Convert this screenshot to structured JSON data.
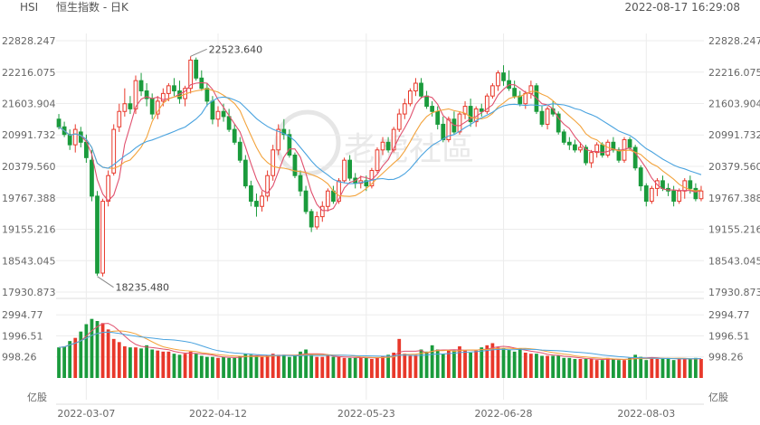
{
  "header": {
    "symbol": "HSI",
    "title": "恒生指数 - 日K",
    "timestamp": "2022-08-17 16:29:08"
  },
  "watermark": "老虎社區",
  "colors": {
    "up": "#e8382a",
    "down": "#1a9b3c",
    "ma5": "#e0506e",
    "ma10": "#f3a33c",
    "ma20": "#4aa3df",
    "grid": "#ececec",
    "axis_text": "#666666"
  },
  "chart_data": [
    {
      "type": "candlestick",
      "title": "恒生指数 - 日K",
      "ylim": [
        17930.873,
        22828.247
      ],
      "y_ticks": [
        "22828.247",
        "22216.075",
        "21603.904",
        "20991.732",
        "20379.560",
        "19767.388",
        "19155.216",
        "18543.045",
        "17930.873"
      ],
      "x_ticks": [
        {
          "index": 5,
          "label": "2022-03-07"
        },
        {
          "index": 29,
          "label": "2022-04-12"
        },
        {
          "index": 56,
          "label": "2022-05-23"
        },
        {
          "index": 81,
          "label": "2022-06-28"
        },
        {
          "index": 107,
          "label": "2022-08-03"
        }
      ],
      "annotations": [
        {
          "label": "22523.640",
          "index": 24,
          "value": 22523.64
        },
        {
          "label": "18235.480",
          "index": 7,
          "value": 18235.48
        }
      ],
      "num_bars": 118,
      "ohlc": [
        [
          21300,
          21400,
          21100,
          21150
        ],
        [
          21150,
          21250,
          20950,
          21000
        ],
        [
          21000,
          21100,
          20700,
          20800
        ],
        [
          20800,
          21200,
          20650,
          21100
        ],
        [
          21050,
          21150,
          20750,
          20850
        ],
        [
          20850,
          21000,
          20450,
          20550
        ],
        [
          20500,
          20700,
          19700,
          19800
        ],
        [
          19800,
          19900,
          18250,
          18300
        ],
        [
          18300,
          19750,
          18235,
          19700
        ],
        [
          19700,
          20300,
          19600,
          20200
        ],
        [
          20250,
          21200,
          20200,
          21100
        ],
        [
          21150,
          21600,
          21050,
          21450
        ],
        [
          21450,
          21900,
          21350,
          21600
        ],
        [
          21600,
          21750,
          21400,
          21500
        ],
        [
          21500,
          22150,
          21400,
          22050
        ],
        [
          22050,
          22200,
          21750,
          21850
        ],
        [
          21850,
          22000,
          21550,
          21700
        ],
        [
          21700,
          21800,
          21300,
          21400
        ],
        [
          21400,
          21750,
          21300,
          21650
        ],
        [
          21650,
          21900,
          21550,
          21800
        ],
        [
          21800,
          22000,
          21650,
          21950
        ],
        [
          21950,
          22100,
          21750,
          21850
        ],
        [
          21850,
          22050,
          21600,
          21700
        ],
        [
          21700,
          21950,
          21550,
          21900
        ],
        [
          21900,
          22523,
          21800,
          22450
        ],
        [
          22450,
          22500,
          22050,
          22100
        ],
        [
          22100,
          22250,
          21850,
          21900
        ],
        [
          21900,
          22000,
          21550,
          21650
        ],
        [
          21650,
          21750,
          21200,
          21300
        ],
        [
          21300,
          21550,
          21150,
          21450
        ],
        [
          21450,
          21600,
          21250,
          21350
        ],
        [
          21350,
          21500,
          21050,
          21100
        ],
        [
          21100,
          21200,
          20800,
          20850
        ],
        [
          20850,
          20950,
          20450,
          20500
        ],
        [
          20500,
          20600,
          19950,
          20000
        ],
        [
          20000,
          20100,
          19600,
          19700
        ],
        [
          19700,
          19850,
          19400,
          19600
        ],
        [
          19600,
          19900,
          19500,
          19800
        ],
        [
          19800,
          20300,
          19700,
          20200
        ],
        [
          20200,
          20800,
          20100,
          20700
        ],
        [
          20700,
          21200,
          20600,
          21100
        ],
        [
          21100,
          21300,
          20900,
          21000
        ],
        [
          21000,
          21100,
          20550,
          20600
        ],
        [
          20600,
          20650,
          20150,
          20200
        ],
        [
          20200,
          20300,
          19800,
          19900
        ],
        [
          19900,
          20000,
          19450,
          19500
        ],
        [
          19500,
          19550,
          19100,
          19200
        ],
        [
          19200,
          19500,
          19150,
          19400
        ],
        [
          19400,
          19700,
          19300,
          19600
        ],
        [
          19600,
          19950,
          19500,
          19900
        ],
        [
          19900,
          20000,
          19650,
          19700
        ],
        [
          19700,
          20150,
          19650,
          20100
        ],
        [
          20100,
          20550,
          20050,
          20500
        ],
        [
          20500,
          20600,
          20100,
          20150
        ],
        [
          20150,
          20250,
          19950,
          20050
        ],
        [
          20050,
          20200,
          19950,
          20100
        ],
        [
          20100,
          20200,
          19900,
          20000
        ],
        [
          20000,
          20350,
          19950,
          20300
        ],
        [
          20300,
          20750,
          20250,
          20700
        ],
        [
          20700,
          20950,
          20600,
          20850
        ],
        [
          20850,
          20950,
          20650,
          20700
        ],
        [
          20700,
          21150,
          20650,
          21100
        ],
        [
          21100,
          21500,
          21050,
          21400
        ],
        [
          21400,
          21700,
          21300,
          21600
        ],
        [
          21600,
          21900,
          21550,
          21850
        ],
        [
          21850,
          22100,
          21750,
          22000
        ],
        [
          22000,
          22100,
          21700,
          21750
        ],
        [
          21750,
          21850,
          21500,
          21550
        ],
        [
          21550,
          21650,
          21350,
          21450
        ],
        [
          21450,
          21550,
          21100,
          21200
        ],
        [
          21200,
          21350,
          20850,
          20900
        ],
        [
          20900,
          21350,
          20850,
          21300
        ],
        [
          21300,
          21450,
          21000,
          21050
        ],
        [
          21050,
          21450,
          21000,
          21400
        ],
        [
          21400,
          21650,
          21300,
          21550
        ],
        [
          21550,
          21700,
          21150,
          21250
        ],
        [
          21250,
          21550,
          21150,
          21500
        ],
        [
          21500,
          21600,
          21350,
          21450
        ],
        [
          21450,
          21800,
          21400,
          21750
        ],
        [
          21750,
          22000,
          21700,
          21950
        ],
        [
          21950,
          22250,
          21850,
          22200
        ],
        [
          22200,
          22350,
          21950,
          22050
        ],
        [
          22050,
          22250,
          21850,
          21900
        ],
        [
          21900,
          22050,
          21700,
          21750
        ],
        [
          21750,
          21850,
          21550,
          21600
        ],
        [
          21600,
          21850,
          21500,
          21800
        ],
        [
          21800,
          22050,
          21700,
          21950
        ],
        [
          21950,
          22000,
          21400,
          21450
        ],
        [
          21450,
          21550,
          21150,
          21200
        ],
        [
          21200,
          21550,
          21100,
          21500
        ],
        [
          21500,
          21650,
          21350,
          21400
        ],
        [
          21400,
          21450,
          21000,
          21050
        ],
        [
          21050,
          21100,
          20800,
          20850
        ],
        [
          20850,
          20950,
          20700,
          20800
        ],
        [
          20800,
          20900,
          20650,
          20700
        ],
        [
          20700,
          20850,
          20650,
          20750
        ],
        [
          20750,
          20800,
          20400,
          20450
        ],
        [
          20450,
          20700,
          20350,
          20650
        ],
        [
          20650,
          20850,
          20550,
          20800
        ],
        [
          20800,
          20850,
          20550,
          20600
        ],
        [
          20600,
          20900,
          20550,
          20850
        ],
        [
          20850,
          20950,
          20650,
          20700
        ],
        [
          20700,
          20750,
          20450,
          20500
        ],
        [
          20500,
          20950,
          20450,
          20900
        ],
        [
          20900,
          20950,
          20700,
          20750
        ],
        [
          20750,
          20800,
          20300,
          20350
        ],
        [
          20350,
          20400,
          19900,
          20000
        ],
        [
          20000,
          20050,
          19600,
          19700
        ],
        [
          19700,
          20000,
          19650,
          19950
        ],
        [
          19950,
          20150,
          19800,
          20100
        ],
        [
          20100,
          20200,
          19900,
          19950
        ],
        [
          19950,
          20050,
          19800,
          19900
        ],
        [
          19900,
          20000,
          19600,
          19700
        ],
        [
          19700,
          19950,
          19650,
          19900
        ],
        [
          19900,
          20150,
          19750,
          20100
        ],
        [
          20100,
          20200,
          19850,
          19950
        ],
        [
          19950,
          20050,
          19700,
          19750
        ],
        [
          19750,
          20000,
          19700,
          19900
        ]
      ],
      "volume": [
        1450,
        1500,
        1750,
        1900,
        2200,
        2550,
        2800,
        2700,
        2600,
        2300,
        1850,
        1700,
        1500,
        1450,
        1450,
        1400,
        1550,
        1350,
        1300,
        1250,
        1250,
        1150,
        1100,
        1150,
        1250,
        1150,
        1050,
        1000,
        1000,
        950,
        1000,
        950,
        950,
        1050,
        1150,
        1100,
        1050,
        1000,
        1050,
        1150,
        1100,
        1100,
        1000,
        1050,
        1250,
        1350,
        1100,
        1000,
        1000,
        1050,
        1000,
        1000,
        950,
        950,
        950,
        1000,
        950,
        900,
        950,
        1050,
        1100,
        1200,
        1850,
        1150,
        1050,
        1100,
        1350,
        1250,
        1550,
        1350,
        1150,
        1350,
        1300,
        1500,
        1300,
        1200,
        1300,
        1450,
        1550,
        1650,
        1450,
        1400,
        1350,
        1250,
        1400,
        1200,
        1150,
        1150,
        1050,
        1050,
        1050,
        1050,
        950,
        950,
        900,
        900,
        900,
        900,
        850,
        850,
        950,
        900,
        850,
        850,
        950,
        1100,
        1000,
        850,
        950,
        900,
        950,
        950,
        850,
        900,
        900,
        900,
        950,
        900
      ],
      "vol_ticks": [
        "2994.77",
        "1996.51",
        "998.26"
      ],
      "vol_ylim": [
        0,
        3300
      ],
      "vol_unit": "亿股"
    }
  ]
}
